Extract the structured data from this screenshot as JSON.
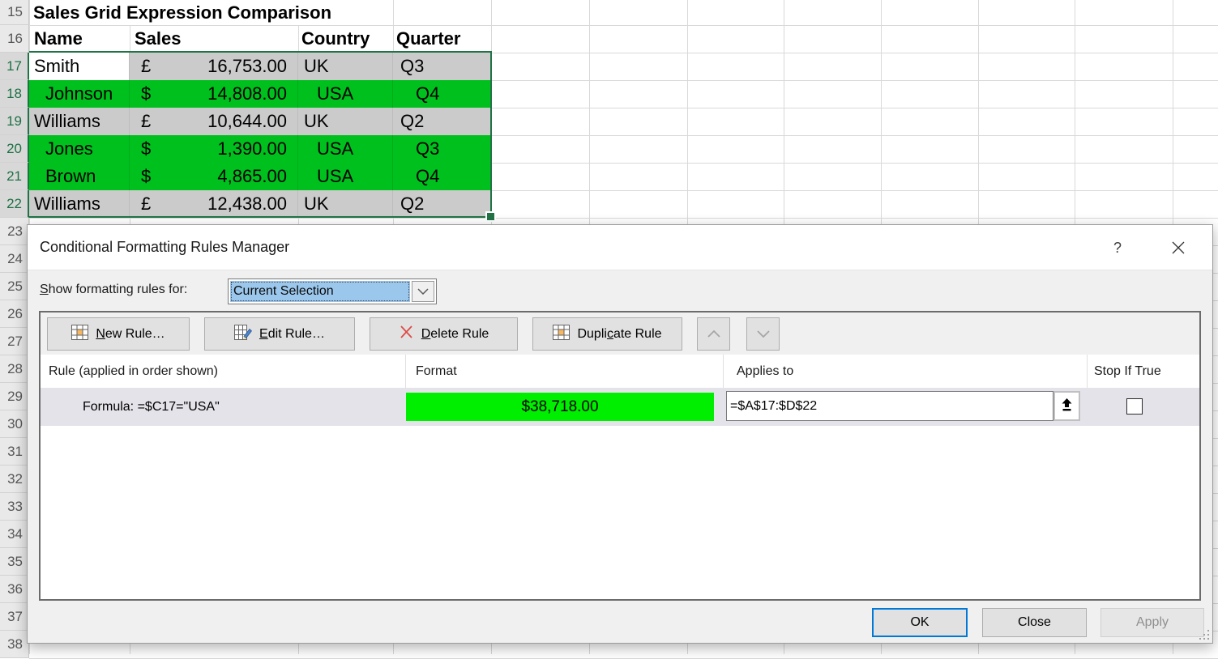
{
  "spreadsheet": {
    "title": "Sales Grid Expression Comparison",
    "headers": {
      "name": "Name",
      "sales": "Sales",
      "country": "Country",
      "quarter": "Quarter"
    },
    "rows": [
      {
        "num": "17",
        "name": "Smith",
        "currency": "£",
        "amount": "16,753.00",
        "country": "UK",
        "quarter": "Q3"
      },
      {
        "num": "18",
        "name": "Johnson",
        "currency": "$",
        "amount": "14,808.00",
        "country": "USA",
        "quarter": "Q4"
      },
      {
        "num": "19",
        "name": "Williams",
        "currency": "£",
        "amount": "10,644.00",
        "country": "UK",
        "quarter": "Q2"
      },
      {
        "num": "20",
        "name": "Jones",
        "currency": "$",
        "amount": "1,390.00",
        "country": "USA",
        "quarter": "Q3"
      },
      {
        "num": "21",
        "name": "Brown",
        "currency": "$",
        "amount": "4,865.00",
        "country": "USA",
        "quarter": "Q4"
      },
      {
        "num": "22",
        "name": "Williams",
        "currency": "£",
        "amount": "12,438.00",
        "country": "UK",
        "quarter": "Q2"
      }
    ],
    "row_numbers": [
      "15",
      "16",
      "17",
      "18",
      "19",
      "20",
      "21",
      "22",
      "23",
      "24",
      "25",
      "26",
      "27",
      "28",
      "29",
      "30",
      "31",
      "32",
      "33",
      "34",
      "35",
      "36",
      "37",
      "38"
    ],
    "selected_row_numbers": [
      "17",
      "18",
      "19",
      "20",
      "21",
      "22"
    ],
    "colors": {
      "highlight_green": "#00c01d",
      "selection_gray": "#cbcbcb",
      "selection_border": "#217346"
    }
  },
  "dialog": {
    "title": "Conditional Formatting Rules Manager",
    "help_label": "?",
    "show_rules_label": {
      "pre": "",
      "key": "S",
      "post": "how formatting rules for:"
    },
    "dropdown": {
      "value": "Current Selection"
    },
    "toolbar": {
      "new_rule": {
        "pre": "",
        "key": "N",
        "post": "ew Rule…"
      },
      "edit_rule": {
        "pre": "",
        "key": "E",
        "post": "dit Rule…"
      },
      "delete_rule": {
        "pre": "",
        "key": "D",
        "post": "elete Rule"
      },
      "duplicate_rule": {
        "pre": "Dupli",
        "key": "c",
        "post": "ate Rule"
      }
    },
    "table": {
      "headers": {
        "rule": "Rule (applied in order shown)",
        "format": "Format",
        "applies_to": "Applies to",
        "stop_if_true": "Stop If True"
      },
      "rule": {
        "description": "Formula: =$C17=\"USA\"",
        "format_preview": "$38,718.00",
        "format_color": "#00ef00",
        "applies_to": "=$A$17:$D$22",
        "stop_if_true_checked": false
      }
    },
    "footer": {
      "ok": "OK",
      "close": "Close",
      "apply": "Apply"
    },
    "accent": {
      "ok_border": "#0078d7",
      "dropdown_selection": "#9cc7ec"
    }
  }
}
